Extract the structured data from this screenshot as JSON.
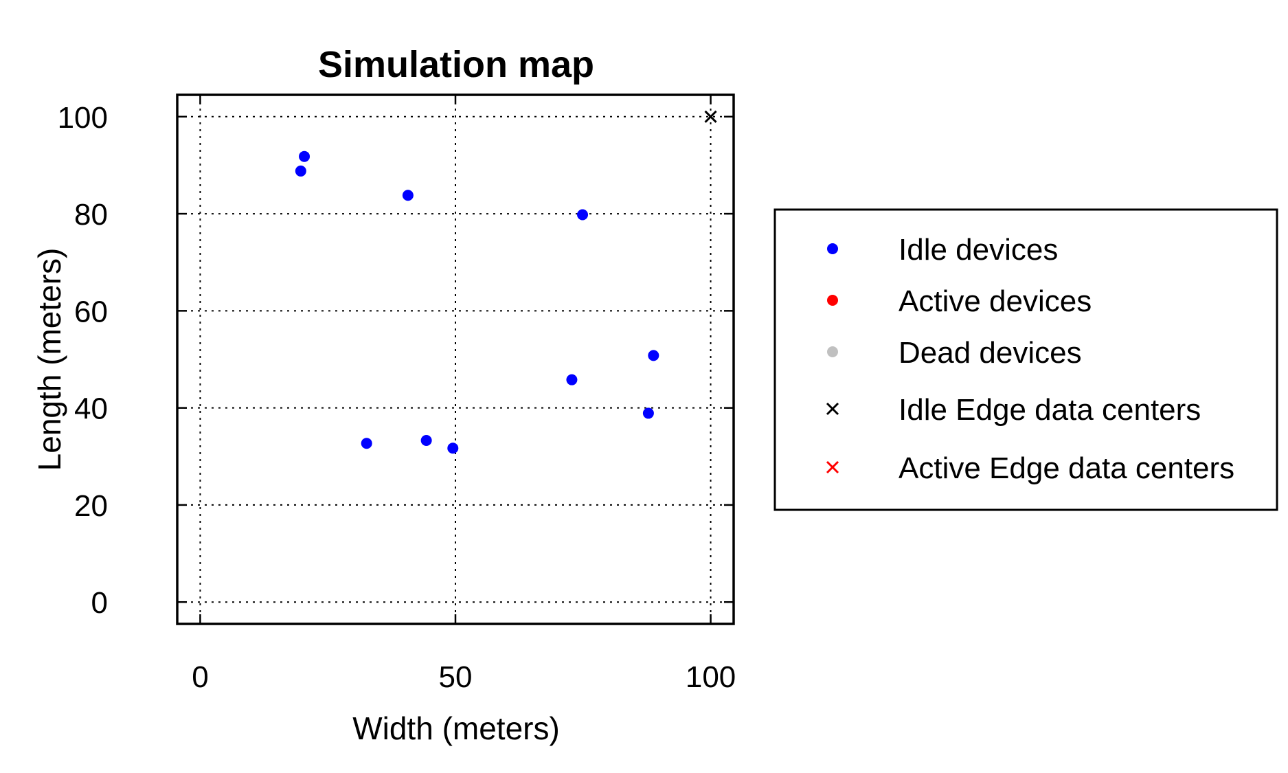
{
  "chart_data": {
    "type": "scatter",
    "title": "Simulation map",
    "xlabel": "Width (meters)",
    "ylabel": "Length (meters)",
    "xlim": [
      -4.5,
      104.5
    ],
    "ylim": [
      -4.5,
      104.5
    ],
    "x_ticks": [
      0,
      50,
      100
    ],
    "y_ticks": [
      0,
      20,
      40,
      60,
      80,
      100
    ],
    "grid": true,
    "legend_position": "right",
    "series": [
      {
        "name": "Idle devices",
        "marker": "dot",
        "color": "#0000ff",
        "points": [
          {
            "x": 19.7,
            "y": 88.8
          },
          {
            "x": 20.4,
            "y": 91.8
          },
          {
            "x": 40.7,
            "y": 83.8
          },
          {
            "x": 74.9,
            "y": 79.8
          },
          {
            "x": 32.6,
            "y": 32.7
          },
          {
            "x": 44.3,
            "y": 33.3
          },
          {
            "x": 49.5,
            "y": 31.7
          },
          {
            "x": 72.8,
            "y": 45.8
          },
          {
            "x": 88.8,
            "y": 50.8
          },
          {
            "x": 87.8,
            "y": 38.9
          }
        ]
      },
      {
        "name": "Active devices",
        "marker": "dot",
        "color": "#ff0000",
        "points": []
      },
      {
        "name": "Dead devices",
        "marker": "dot",
        "color": "#c0c0c0",
        "points": []
      },
      {
        "name": "Idle Edge data centers",
        "marker": "x",
        "color": "#000000",
        "points": [
          {
            "x": 100,
            "y": 100
          }
        ]
      },
      {
        "name": "Active Edge data centers",
        "marker": "x",
        "color": "#ff0000",
        "points": []
      }
    ]
  }
}
